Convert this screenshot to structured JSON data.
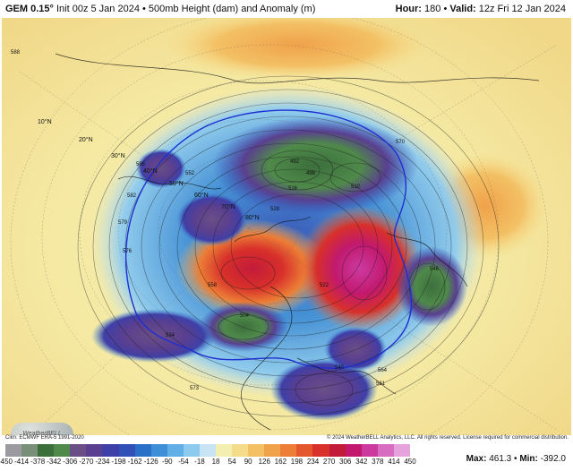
{
  "header": {
    "model": "GEM 0.15°",
    "init": " Init 00z 5 Jan 2024 • 500mb Height (dam) and Anomaly (m)",
    "hour_label": "Hour:",
    "hour_value": "180",
    "valid_label": "Valid:",
    "valid_value": "12z Fri 12 Jan 2024"
  },
  "footer": {
    "clim": "Clim: ECMWF ERA-5 1991-2020",
    "copyright": "© 2024 WeatherBELL Analytics, LLC. All rights reserved. License required for commercial distribution.",
    "max_label": "Max:",
    "max_value": "461.3",
    "min_label": "Min:",
    "min_value": "-392.0"
  },
  "logo_text": "WeatherBELL",
  "colorbar": {
    "ticks": [
      "-450",
      "-414",
      "-378",
      "-342",
      "-306",
      "-270",
      "-234",
      "-198",
      "-162",
      "-126",
      "-90",
      "-54",
      "-18",
      "18",
      "54",
      "90",
      "126",
      "162",
      "198",
      "234",
      "270",
      "306",
      "342",
      "378",
      "414",
      "450"
    ],
    "colors": [
      "#9a9aa0",
      "#7a8f7a",
      "#3c6e3c",
      "#4f8a4a",
      "#6a4f86",
      "#5a3f90",
      "#3f3fa8",
      "#3050b8",
      "#2a6fc8",
      "#3e8ed8",
      "#62aee6",
      "#8ccaf0",
      "#c8e4f4",
      "#f3efb0",
      "#f5dc8a",
      "#f3c064",
      "#f0a24a",
      "#ec7e36",
      "#e4562c",
      "#d8302a",
      "#c41a3a",
      "#c2196e",
      "#cc3aa0",
      "#d86cc0",
      "#e6a2dc"
    ]
  },
  "map": {
    "lat_labels": [
      "10°N",
      "20°N",
      "30°N",
      "40°N",
      "50°N",
      "60°N",
      "70°N",
      "80°N"
    ],
    "contour_labels": [
      "588",
      "585",
      "582",
      "579",
      "576",
      "573",
      "570",
      "564",
      "561",
      "558",
      "552",
      "546",
      "540",
      "534",
      "528",
      "522",
      "516",
      "510",
      "504",
      "498",
      "492"
    ],
    "anomaly_regions": [
      {
        "name": "siberia-low",
        "kind": "negative",
        "color": "#3c6e3c"
      },
      {
        "name": "greenland-high",
        "kind": "positive",
        "color": "#d8302a"
      },
      {
        "name": "scandinavia-high",
        "kind": "positive",
        "color": "#c41a3a"
      },
      {
        "name": "north-pacific-low",
        "kind": "negative",
        "color": "#3f3fa8"
      },
      {
        "name": "alaska-low",
        "kind": "negative",
        "color": "#3c6e3c"
      },
      {
        "name": "north-america-low",
        "kind": "negative",
        "color": "#5a3f90"
      },
      {
        "name": "mediterranean-low",
        "kind": "negative",
        "color": "#6a4f86"
      },
      {
        "name": "hudson-low",
        "kind": "negative",
        "color": "#6a4f86"
      }
    ]
  }
}
